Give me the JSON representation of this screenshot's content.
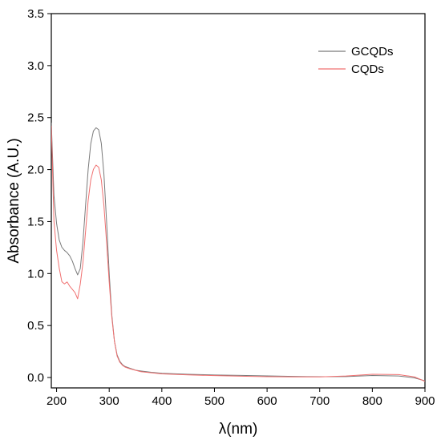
{
  "chart_data": {
    "type": "line",
    "xlabel": "λ(nm)",
    "ylabel": "Absorbance (A.U.)",
    "xlim": [
      190,
      900
    ],
    "ylim": [
      -0.1,
      3.5
    ],
    "xticks": [
      200,
      300,
      400,
      500,
      600,
      700,
      800,
      900
    ],
    "yticks": [
      0.0,
      0.5,
      1.0,
      1.5,
      2.0,
      2.5,
      3.0,
      3.5
    ],
    "grid": false,
    "legend_position": "top-right",
    "series": [
      {
        "name": "GCQDs",
        "color": "#7a7a7a",
        "x": [
          190,
          195,
          200,
          205,
          210,
          215,
          220,
          225,
          230,
          235,
          240,
          245,
          250,
          255,
          260,
          265,
          270,
          275,
          280,
          285,
          290,
          295,
          300,
          305,
          310,
          315,
          320,
          325,
          330,
          340,
          350,
          360,
          380,
          400,
          450,
          500,
          550,
          600,
          650,
          700,
          750,
          800,
          850,
          880,
          900
        ],
        "y": [
          2.45,
          1.75,
          1.48,
          1.32,
          1.25,
          1.22,
          1.2,
          1.17,
          1.12,
          1.05,
          0.99,
          1.05,
          1.3,
          1.65,
          2.0,
          2.25,
          2.37,
          2.4,
          2.38,
          2.25,
          1.95,
          1.5,
          1.0,
          0.6,
          0.35,
          0.22,
          0.16,
          0.13,
          0.11,
          0.09,
          0.07,
          0.06,
          0.045,
          0.035,
          0.025,
          0.02,
          0.018,
          0.015,
          0.013,
          0.012,
          0.015,
          0.025,
          0.02,
          0.0,
          -0.03
        ]
      },
      {
        "name": "CQDs",
        "color": "#f07070",
        "x": [
          190,
          195,
          200,
          205,
          210,
          215,
          220,
          225,
          230,
          235,
          240,
          245,
          250,
          255,
          260,
          265,
          270,
          275,
          280,
          285,
          290,
          295,
          300,
          305,
          310,
          315,
          320,
          325,
          330,
          340,
          350,
          360,
          380,
          400,
          450,
          500,
          550,
          600,
          650,
          700,
          750,
          800,
          850,
          880,
          900
        ],
        "y": [
          2.42,
          1.5,
          1.22,
          1.05,
          0.92,
          0.9,
          0.92,
          0.88,
          0.85,
          0.82,
          0.76,
          0.9,
          1.1,
          1.4,
          1.7,
          1.9,
          2.0,
          2.04,
          2.02,
          1.9,
          1.65,
          1.3,
          0.92,
          0.58,
          0.35,
          0.21,
          0.15,
          0.12,
          0.1,
          0.08,
          0.065,
          0.05,
          0.04,
          0.03,
          0.022,
          0.018,
          0.015,
          0.012,
          0.012,
          0.012,
          0.02,
          0.035,
          0.03,
          0.005,
          -0.04
        ]
      }
    ]
  }
}
